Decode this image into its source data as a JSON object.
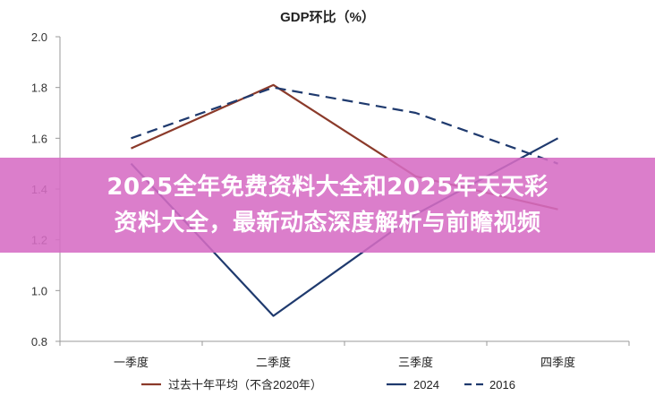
{
  "chart_data": {
    "type": "line",
    "title": "GDP环比（%）",
    "categories": [
      "一季度",
      "二季度",
      "三季度",
      "四季度"
    ],
    "ylim": [
      0.8,
      2.0
    ],
    "yticks": [
      "0.8",
      "1.0",
      "1.2",
      "1.4",
      "1.6",
      "1.8",
      "2.0"
    ],
    "grid": false,
    "legend_position": "bottom",
    "series": [
      {
        "name": "过去十年平均（不含2020年）",
        "values": [
          1.56,
          1.81,
          1.45,
          1.32
        ],
        "color": "#8b3a2a",
        "dash": "solid"
      },
      {
        "name": "2024",
        "values": [
          1.5,
          0.9,
          1.3,
          1.6
        ],
        "color": "#1f3a6e",
        "dash": "solid"
      },
      {
        "name": "2016",
        "values": [
          1.6,
          1.8,
          1.7,
          1.5
        ],
        "color": "#1f3a6e",
        "dash": "dashed"
      }
    ]
  },
  "banner": {
    "line1": "2025全年免费资料大全和2025年天天彩",
    "line2": "资料大全，最新动态深度解析与前瞻视频"
  }
}
